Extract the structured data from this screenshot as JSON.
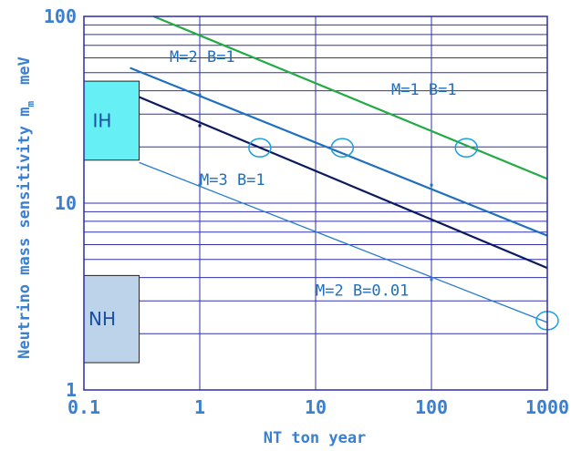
{
  "chart_data": {
    "type": "line",
    "title": "",
    "xlabel": "NT ton year",
    "ylabel_main": "Neutrino mass sensitivity m",
    "ylabel_sub": "m",
    "ylabel_unit": "meV",
    "x_scale": "log",
    "y_scale": "log",
    "xlim": [
      0.1,
      1000
    ],
    "ylim": [
      1,
      100
    ],
    "x_ticks": [
      "0.1",
      "1",
      "10",
      "100",
      "1000"
    ],
    "y_ticks": [
      "1",
      "10",
      "100"
    ],
    "grid": true,
    "series": [
      {
        "name": "M=1 B=1",
        "color": "#22aa44",
        "x": [
          0.4,
          1000
        ],
        "y": [
          100,
          13.5
        ]
      },
      {
        "name": "M=2 B=1",
        "color": "#1f6fbf",
        "x": [
          0.25,
          1000
        ],
        "y": [
          53,
          6.7
        ]
      },
      {
        "name": "M=3 B=1",
        "color": "#0a1a5c",
        "x": [
          0.3,
          1000
        ],
        "y": [
          37,
          4.5
        ]
      },
      {
        "name": "M=2 B=0.01",
        "color": "#2a7acc",
        "x": [
          0.3,
          1000
        ],
        "y": [
          16.5,
          2.3
        ]
      }
    ],
    "series_points": [
      {
        "series": "M=2 B=1",
        "x": [
          1,
          100
        ],
        "y": [
          38,
          12.5
        ]
      },
      {
        "series": "M=3 B=1",
        "x": [
          1
        ],
        "y": [
          26
        ]
      },
      {
        "series": "M=2 B=0.01",
        "x": [
          1,
          100
        ],
        "y": [
          12.5,
          3.9
        ]
      }
    ],
    "circle_markers": [
      {
        "x": 3.3,
        "y": 19.8
      },
      {
        "x": 17,
        "y": 19.8
      },
      {
        "x": 200,
        "y": 19.8
      },
      {
        "x": 1000,
        "y": 2.35
      }
    ],
    "annotations": [
      {
        "text": "M=2 B=1",
        "x": 0.55,
        "y": 57,
        "color": "#1f6fbf"
      },
      {
        "text": "M=1 B=1",
        "x": 45,
        "y": 38,
        "color": "#1f6fbf"
      },
      {
        "text": "M=3 B=1",
        "x": 1,
        "y": 12.5,
        "color": "#1f6fbf"
      },
      {
        "text": "M=2 B=0.01",
        "x": 10,
        "y": 3.2,
        "color": "#1f6fbf"
      }
    ],
    "regions": [
      {
        "label": "IH",
        "x": [
          0.1,
          0.3
        ],
        "y": [
          17,
          45
        ],
        "color": "#66f0f5"
      },
      {
        "label": "NH",
        "x": [
          0.1,
          0.3
        ],
        "y": [
          1.4,
          4.1
        ],
        "color": "#bcd3ea"
      }
    ]
  }
}
